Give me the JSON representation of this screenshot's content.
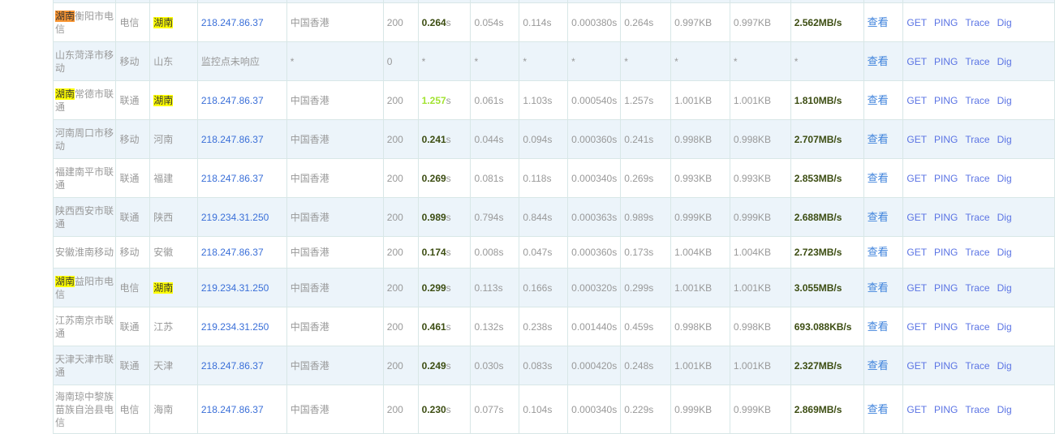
{
  "table": {
    "view_label": "查看",
    "action_labels": [
      "GET",
      "PING",
      "Trace",
      "Dig"
    ],
    "colors": {
      "link_blue": "#3a6fd8",
      "tool_link_blue": "#5b74e4",
      "time_dark_green": "#3c4d12",
      "time_lime_green": "#a2e331",
      "highlight_active": "#fa9632",
      "highlight_match": "#ffff00",
      "alt_row_bg": "#ecf4fa",
      "border": "#d8e7e7",
      "text_gray": "#999999"
    },
    "rows": [
      {
        "name_hl": "湖南",
        "hl_type": "active",
        "name_rest": "衡阳市电信",
        "isp": "电信",
        "province": "湖南",
        "prov_hl": true,
        "ip": "218.247.86.37",
        "ip_link": true,
        "location": "中国香港",
        "status": "200",
        "total": "0.264",
        "unit": "s",
        "total_style": "dark",
        "t1": "0.054s",
        "t2": "0.114s",
        "t3": "0.000380s",
        "t4": "0.264s",
        "size1": "0.997KB",
        "size2": "0.997KB",
        "speed": "2.562MB/s",
        "speed_style": "dark"
      },
      {
        "name_hl": "",
        "hl_type": "",
        "name_rest": "山东菏泽市移动",
        "isp": "移动",
        "province": "山东",
        "prov_hl": false,
        "ip": "监控点未响应",
        "ip_link": false,
        "location": "*",
        "status": "0",
        "total": "*",
        "unit": "",
        "total_style": "plain",
        "t1": "*",
        "t2": "*",
        "t3": "*",
        "t4": "*",
        "size1": "*",
        "size2": "*",
        "speed": "*",
        "speed_style": "plain"
      },
      {
        "name_hl": "湖南",
        "hl_type": "match",
        "name_rest": "常德市联通",
        "isp": "联通",
        "province": "湖南",
        "prov_hl": true,
        "ip": "218.247.86.37",
        "ip_link": true,
        "location": "中国香港",
        "status": "200",
        "total": "1.257",
        "unit": "s",
        "total_style": "lime",
        "t1": "0.061s",
        "t2": "1.103s",
        "t3": "0.000540s",
        "t4": "1.257s",
        "size1": "1.001KB",
        "size2": "1.001KB",
        "speed": "1.810MB/s",
        "speed_style": "dark"
      },
      {
        "name_hl": "",
        "hl_type": "",
        "name_rest": "河南周口市移动",
        "isp": "移动",
        "province": "河南",
        "prov_hl": false,
        "ip": "218.247.86.37",
        "ip_link": true,
        "location": "中国香港",
        "status": "200",
        "total": "0.241",
        "unit": "s",
        "total_style": "dark",
        "t1": "0.044s",
        "t2": "0.094s",
        "t3": "0.000360s",
        "t4": "0.241s",
        "size1": "0.998KB",
        "size2": "0.998KB",
        "speed": "2.707MB/s",
        "speed_style": "dark"
      },
      {
        "name_hl": "",
        "hl_type": "",
        "name_rest": "福建南平市联通",
        "isp": "联通",
        "province": "福建",
        "prov_hl": false,
        "ip": "218.247.86.37",
        "ip_link": true,
        "location": "中国香港",
        "status": "200",
        "total": "0.269",
        "unit": "s",
        "total_style": "dark",
        "t1": "0.081s",
        "t2": "0.118s",
        "t3": "0.000340s",
        "t4": "0.269s",
        "size1": "0.993KB",
        "size2": "0.993KB",
        "speed": "2.853MB/s",
        "speed_style": "dark"
      },
      {
        "name_hl": "",
        "hl_type": "",
        "name_rest": "陕西西安市联通",
        "isp": "联通",
        "province": "陕西",
        "prov_hl": false,
        "ip": "219.234.31.250",
        "ip_link": true,
        "location": "中国香港",
        "status": "200",
        "total": "0.989",
        "unit": "s",
        "total_style": "dark",
        "t1": "0.794s",
        "t2": "0.844s",
        "t3": "0.000363s",
        "t4": "0.989s",
        "size1": "0.999KB",
        "size2": "0.999KB",
        "speed": "2.688MB/s",
        "speed_style": "dark"
      },
      {
        "name_hl": "",
        "hl_type": "",
        "name_rest": "安徽淮南移动",
        "isp": "移动",
        "province": "安徽",
        "prov_hl": false,
        "ip": "218.247.86.37",
        "ip_link": true,
        "location": "中国香港",
        "status": "200",
        "total": "0.174",
        "unit": "s",
        "total_style": "dark",
        "t1": "0.008s",
        "t2": "0.047s",
        "t3": "0.000360s",
        "t4": "0.173s",
        "size1": "1.004KB",
        "size2": "1.004KB",
        "speed": "2.723MB/s",
        "speed_style": "dark"
      },
      {
        "name_hl": "湖南",
        "hl_type": "match",
        "name_rest": "益阳市电信",
        "isp": "电信",
        "province": "湖南",
        "prov_hl": true,
        "ip": "219.234.31.250",
        "ip_link": true,
        "location": "中国香港",
        "status": "200",
        "total": "0.299",
        "unit": "s",
        "total_style": "dark",
        "t1": "0.113s",
        "t2": "0.166s",
        "t3": "0.000320s",
        "t4": "0.299s",
        "size1": "1.001KB",
        "size2": "1.001KB",
        "speed": "3.055MB/s",
        "speed_style": "dark"
      },
      {
        "name_hl": "",
        "hl_type": "",
        "name_rest": "江苏南京市联通",
        "isp": "联通",
        "province": "江苏",
        "prov_hl": false,
        "ip": "219.234.31.250",
        "ip_link": true,
        "location": "中国香港",
        "status": "200",
        "total": "0.461",
        "unit": "s",
        "total_style": "dark",
        "t1": "0.132s",
        "t2": "0.238s",
        "t3": "0.001440s",
        "t4": "0.459s",
        "size1": "0.998KB",
        "size2": "0.998KB",
        "speed": "693.088KB/s",
        "speed_style": "dark"
      },
      {
        "name_hl": "",
        "hl_type": "",
        "name_rest": "天津天津市联通",
        "isp": "联通",
        "province": "天津",
        "prov_hl": false,
        "ip": "218.247.86.37",
        "ip_link": true,
        "location": "中国香港",
        "status": "200",
        "total": "0.249",
        "unit": "s",
        "total_style": "dark",
        "t1": "0.030s",
        "t2": "0.083s",
        "t3": "0.000420s",
        "t4": "0.248s",
        "size1": "1.001KB",
        "size2": "1.001KB",
        "speed": "2.327MB/s",
        "speed_style": "dark"
      },
      {
        "name_hl": "",
        "hl_type": "",
        "name_rest": "海南琼中黎族苗族自治县电信",
        "isp": "电信",
        "province": "海南",
        "prov_hl": false,
        "ip": "218.247.86.37",
        "ip_link": true,
        "location": "中国香港",
        "status": "200",
        "total": "0.230",
        "unit": "s",
        "total_style": "dark",
        "t1": "0.077s",
        "t2": "0.104s",
        "t3": "0.000340s",
        "t4": "0.229s",
        "size1": "0.999KB",
        "size2": "0.999KB",
        "speed": "2.869MB/s",
        "speed_style": "dark"
      }
    ]
  }
}
